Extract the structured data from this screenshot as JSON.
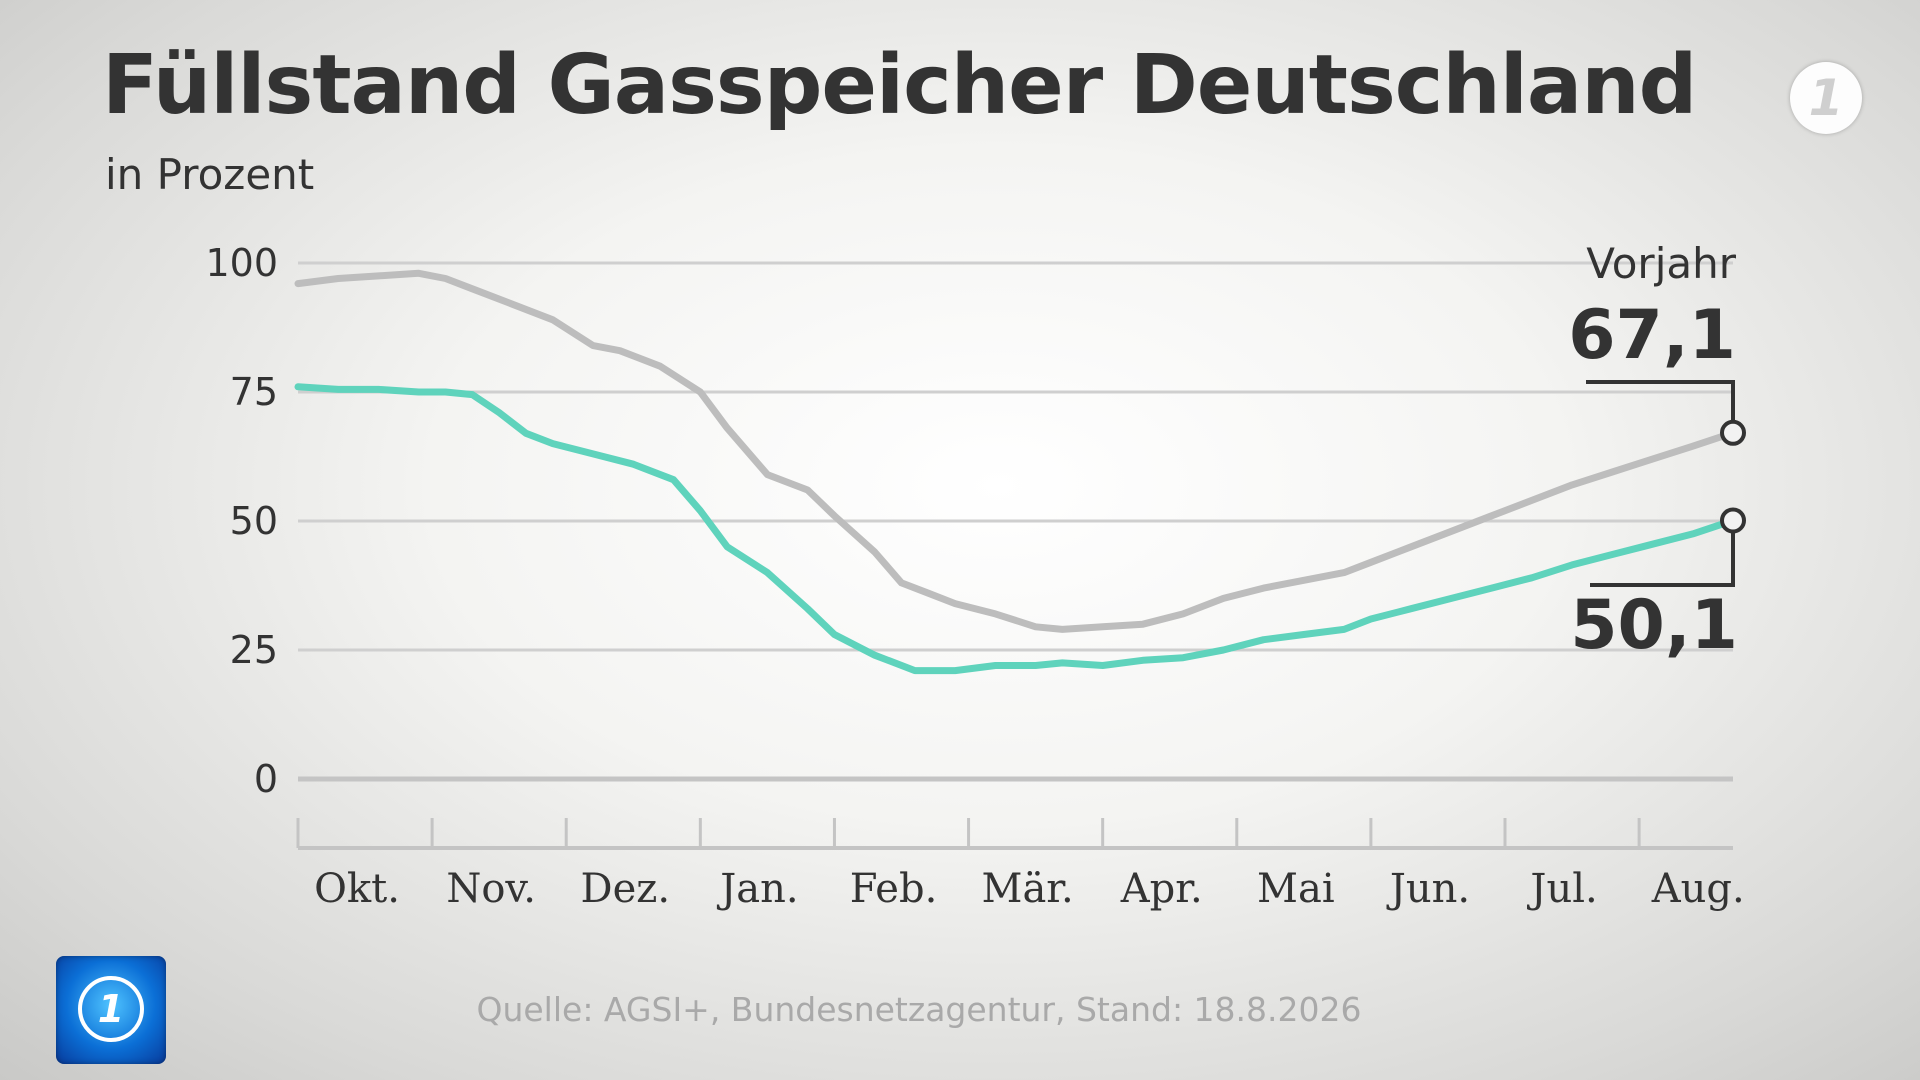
{
  "header": {
    "title": "Füllstand Gasspeicher Deutschland",
    "subtitle": "in Prozent"
  },
  "footer": {
    "source": "Quelle: AGSI+, Bundesnetzagentur, Stand: 18.8.2026"
  },
  "logos": {
    "broadcaster_mark": "1",
    "show_logo": "tagesschau-globe-icon"
  },
  "colors": {
    "current": "#5fd3bc",
    "previous": "#bdbdbd",
    "text": "#333333",
    "grid": "#cfcfcf",
    "axis": "#c4c4c4"
  },
  "chart_data": {
    "type": "line",
    "categories": [
      "Okt.",
      "Nov.",
      "Dez.",
      "Jan.",
      "Feb.",
      "Mär.",
      "Apr.",
      "Mai",
      "Jun.",
      "Jul.",
      "Aug."
    ],
    "x_range": [
      0,
      10.7
    ],
    "ylim": [
      0,
      100
    ],
    "yticks": [
      0,
      25,
      50,
      75,
      100
    ],
    "grid": true,
    "series": [
      {
        "name": "Vorjahr",
        "end_label": "67,1",
        "color": "#bdbdbd",
        "x": [
          0,
          0.3,
          0.6,
          0.9,
          1.1,
          1.3,
          1.6,
          1.9,
          2.2,
          2.4,
          2.7,
          3.0,
          3.2,
          3.5,
          3.8,
          4.0,
          4.3,
          4.5,
          4.7,
          4.9,
          5.2,
          5.5,
          5.7,
          6.0,
          6.3,
          6.6,
          6.9,
          7.2,
          7.5,
          7.8,
          8.0,
          8.3,
          8.6,
          8.9,
          9.2,
          9.5,
          9.8,
          10.1,
          10.4,
          10.7
        ],
        "y": [
          96,
          97,
          97.5,
          98,
          97,
          95,
          92,
          89,
          84,
          83,
          80,
          75,
          68,
          59,
          56,
          51,
          44,
          38,
          36,
          34,
          32,
          29.5,
          29,
          29.5,
          30,
          32,
          35,
          37,
          38.5,
          40,
          42,
          45,
          48,
          51,
          54,
          57,
          59.5,
          62,
          64.5,
          67.1
        ]
      },
      {
        "name": "",
        "end_label": "50,1",
        "color": "#5fd3bc",
        "x": [
          0,
          0.3,
          0.6,
          0.9,
          1.1,
          1.3,
          1.5,
          1.7,
          1.9,
          2.2,
          2.5,
          2.8,
          3.0,
          3.2,
          3.5,
          3.8,
          4.0,
          4.3,
          4.6,
          4.9,
          5.2,
          5.5,
          5.7,
          6.0,
          6.3,
          6.6,
          6.9,
          7.2,
          7.5,
          7.8,
          8.0,
          8.3,
          8.6,
          8.9,
          9.2,
          9.5,
          9.8,
          10.1,
          10.4,
          10.7
        ],
        "y": [
          76,
          75.5,
          75.5,
          75,
          75,
          74.5,
          71,
          67,
          65,
          63,
          61,
          58,
          52,
          45,
          40,
          33,
          28,
          24,
          21,
          21,
          22,
          22,
          22.5,
          22,
          23,
          23.5,
          25,
          27,
          28,
          29,
          31,
          33,
          35,
          37,
          39,
          41.5,
          43.5,
          45.5,
          47.5,
          50.1
        ]
      }
    ]
  }
}
